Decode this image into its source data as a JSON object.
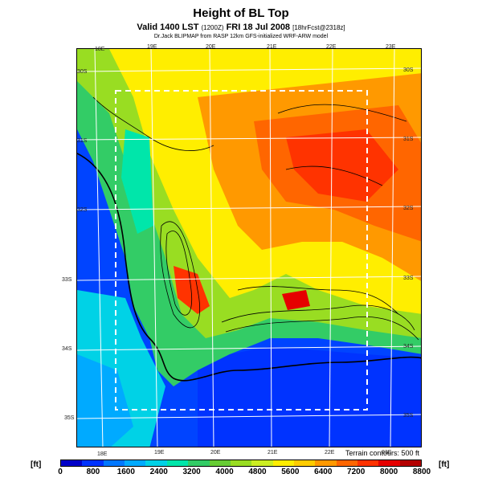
{
  "title": "Height of BL Top",
  "subtitle_main": "Valid 1400 LST",
  "subtitle_code": "(1200Z)",
  "subtitle_date": "FRI 18 Jul 2008",
  "subtitle_fcst": "[18hrFcst@2318z]",
  "credit": "Dr.Jack BLIPMAP from RASP 12km GFS-initialized WRF-ARW model",
  "contour_note": "Terrain contours: 500 ft",
  "unit_label": "[ft]",
  "lon_top": [
    "18E",
    "19E",
    "20E",
    "21E",
    "22E",
    "23E"
  ],
  "lon_bottom": [
    "18E",
    "19E",
    "20E",
    "21E",
    "22E",
    "23E"
  ],
  "lat_right": [
    "30S",
    "31S",
    "32S",
    "33S",
    "34S",
    "35S"
  ],
  "lat_left": [
    "30S",
    "31S",
    "32S",
    "33S",
    "34S",
    "35S"
  ],
  "colorbar": {
    "colors": [
      "#0000c8",
      "#0033ff",
      "#0077ff",
      "#00aaff",
      "#00d2e6",
      "#00e6aa",
      "#33cc66",
      "#66cc33",
      "#99dd22",
      "#ccee22",
      "#ffee00",
      "#ffcc00",
      "#ff9900",
      "#ff6600",
      "#ff3300",
      "#e60000",
      "#b40000"
    ],
    "ticks": [
      "0",
      "800",
      "1600",
      "2400",
      "3200",
      "4000",
      "4800",
      "5600",
      "6400",
      "7200",
      "8000",
      "8800"
    ]
  }
}
